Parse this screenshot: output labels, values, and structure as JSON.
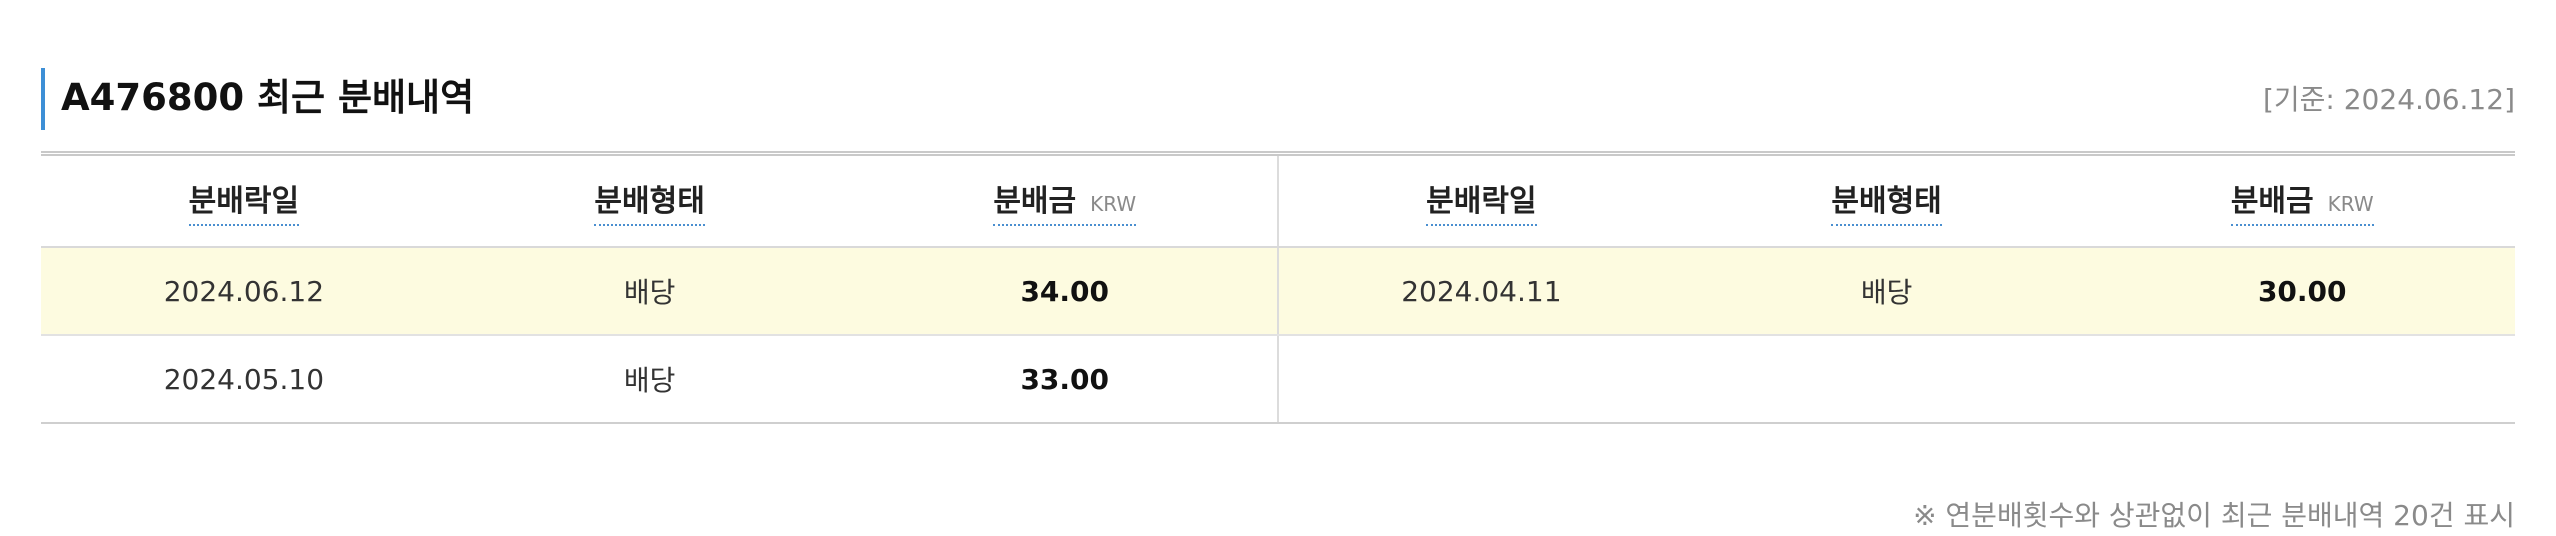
{
  "section": {
    "title": "A476800 최근 분배내역",
    "base_date": "[기준: 2024.06.12]"
  },
  "table": {
    "headers": {
      "date": "분배락일",
      "type": "분배형태",
      "amount": "분배금",
      "unit": "KRW"
    },
    "rows": [
      {
        "left": {
          "date": "2024.06.12",
          "type": "배당",
          "amount": "34.00"
        },
        "right": {
          "date": "2024.04.11",
          "type": "배당",
          "amount": "30.00"
        }
      },
      {
        "left": {
          "date": "2024.05.10",
          "type": "배당",
          "amount": "33.00"
        },
        "right": {
          "date": "",
          "type": "",
          "amount": ""
        }
      }
    ]
  },
  "note": "※ 연분배횟수와 상관없이 최근 분배내역 20건 표시",
  "colors": {
    "accent": "#3d8fd6",
    "highlight_row": "#fdfbe0",
    "muted_text": "#8a8a8a"
  }
}
